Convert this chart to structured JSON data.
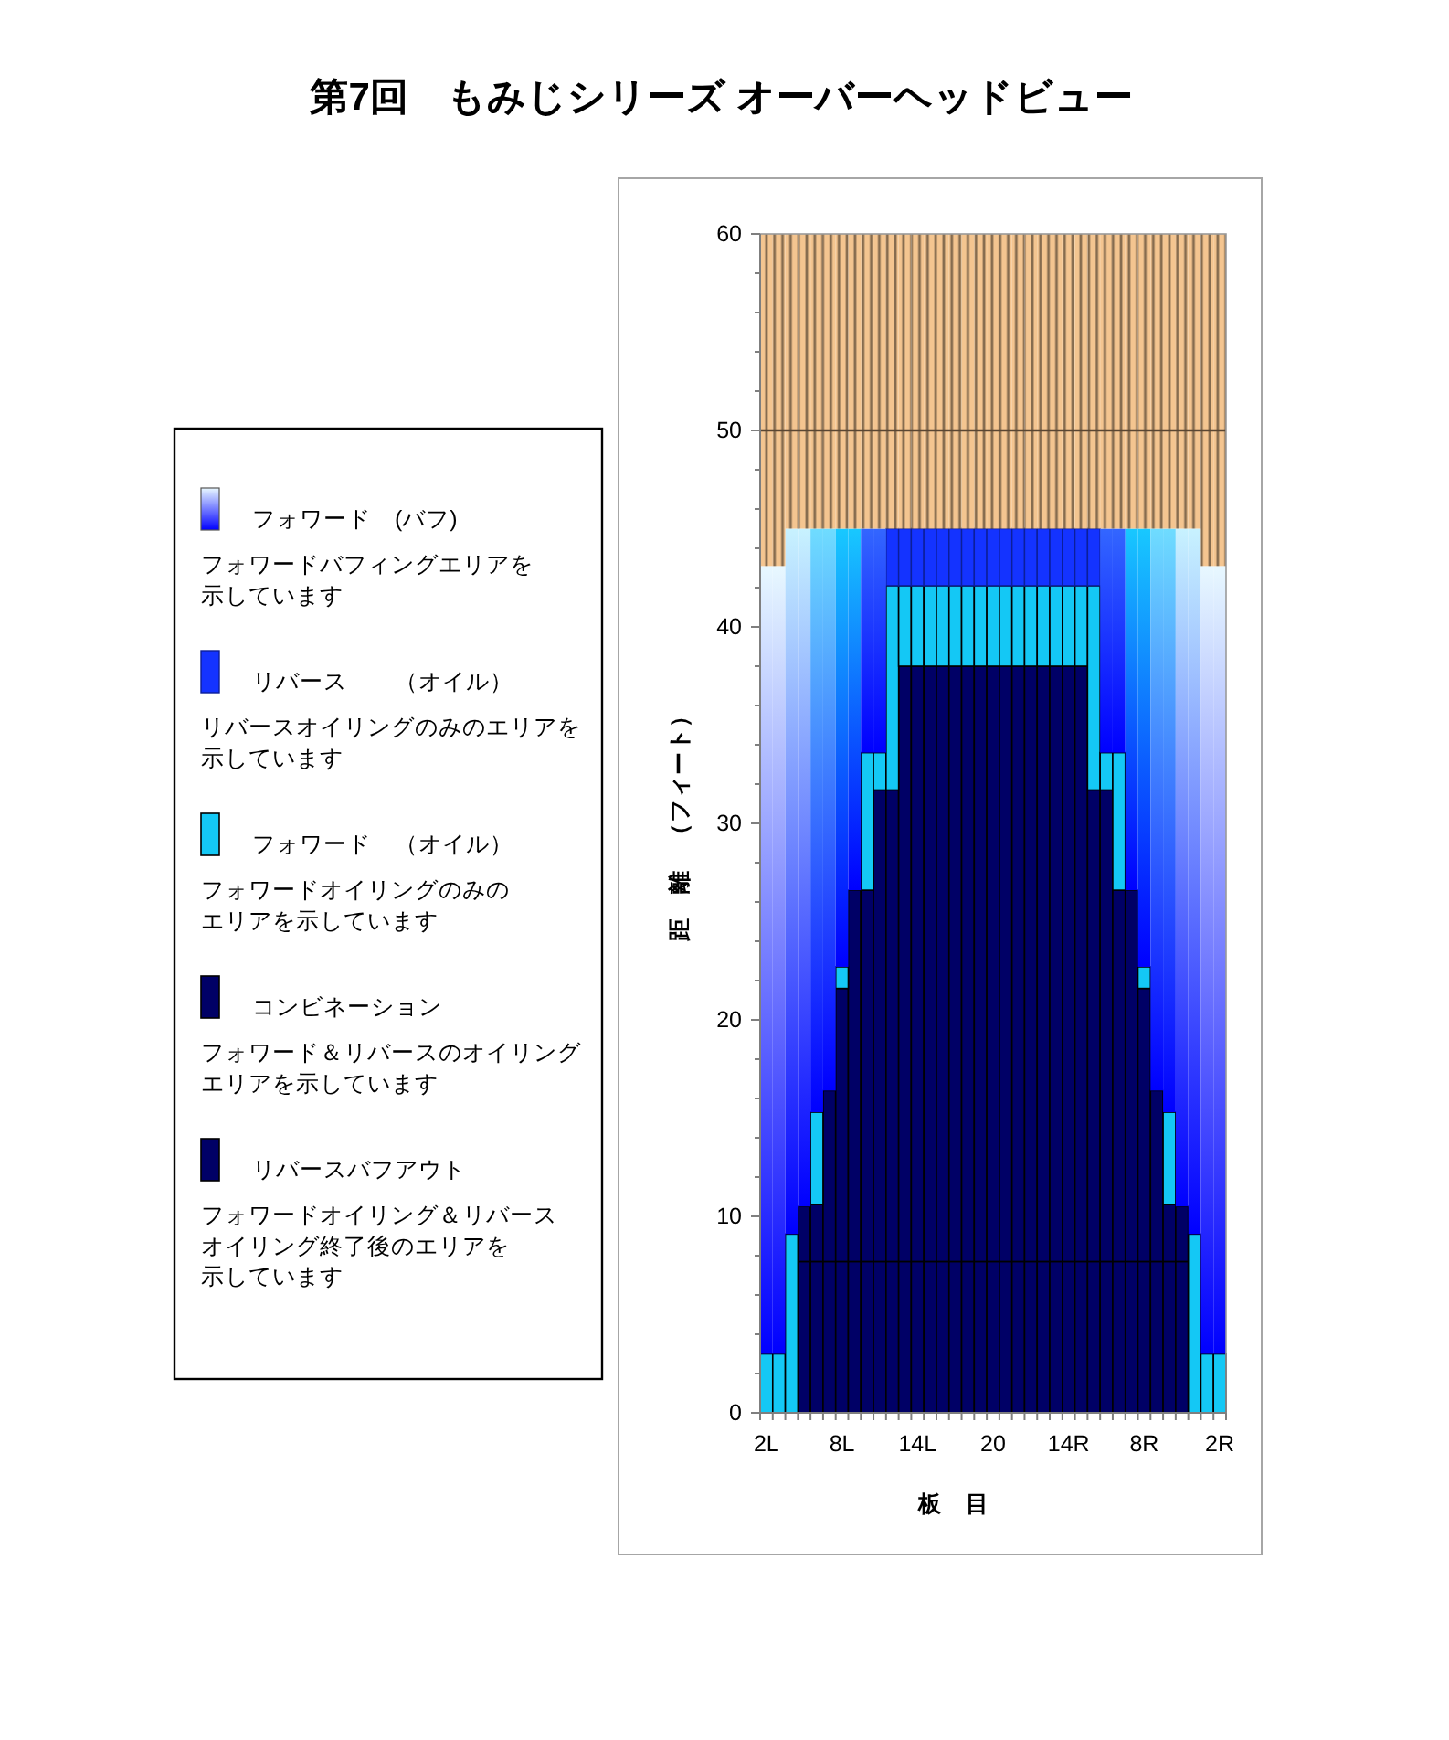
{
  "chart_data": {
    "type": "bar",
    "stacked": true,
    "title": "第7回　もみじシリーズ オーバーヘッドビュー",
    "xlabel": "板　目",
    "ylabel": "距　離　（フィート）",
    "categories": [
      "2L",
      null,
      null,
      null,
      null,
      null,
      "8L",
      null,
      null,
      null,
      null,
      null,
      "14L",
      null,
      null,
      null,
      null,
      null,
      "20",
      null,
      null,
      null,
      null,
      null,
      "14R",
      null,
      null,
      null,
      null,
      null,
      "8R",
      null,
      null,
      null,
      null,
      null,
      "2R"
    ],
    "ylim": [
      0,
      60
    ],
    "yticks": [
      0,
      {
        "value": 2,
        "label": null
      },
      {
        "value": 4,
        "label": null
      },
      {
        "value": 6,
        "label": null
      },
      {
        "value": 8,
        "label": null
      },
      10,
      {
        "value": 12,
        "label": null
      },
      {
        "value": 14,
        "label": null
      },
      {
        "value": 16,
        "label": null
      },
      {
        "value": 18,
        "label": null
      },
      20,
      {
        "value": 22,
        "label": null
      },
      {
        "value": 24,
        "label": null
      },
      {
        "value": 26,
        "label": null
      },
      {
        "value": 28,
        "label": null
      },
      30,
      {
        "value": 32,
        "label": null
      },
      {
        "value": 34,
        "label": null
      },
      {
        "value": 36,
        "label": null
      },
      {
        "value": 38,
        "label": null
      },
      40,
      {
        "value": 42,
        "label": null
      },
      {
        "value": 44,
        "label": null
      },
      {
        "value": 46,
        "label": null
      },
      {
        "value": 48,
        "label": null
      },
      50,
      {
        "value": 52,
        "label": null
      },
      {
        "value": 54,
        "label": null
      },
      {
        "value": 56,
        "label": null
      },
      {
        "value": 58,
        "label": null
      },
      60
    ],
    "series": [
      {
        "name": "リバースバフアウト",
        "color": "#000066",
        "values": [
          null,
          null,
          null,
          7.7,
          7.7,
          7.7,
          7.7,
          7.7,
          7.7,
          7.7,
          7.7,
          7.7,
          7.7,
          7.7,
          7.7,
          7.7,
          7.7,
          7.7,
          7.7,
          7.7,
          7.7,
          7.7,
          7.7,
          7.7,
          7.7,
          7.7,
          7.7,
          7.7,
          7.7,
          7.7,
          7.7,
          7.7,
          7.7,
          7.7,
          null,
          null,
          null
        ]
      },
      {
        "name": "コンビネーション",
        "color": "#000066",
        "values": [
          null,
          null,
          null,
          2.8,
          2.9,
          8.7,
          13.9,
          18.9,
          18.9,
          24.0,
          24.0,
          30.3,
          30.3,
          30.3,
          30.3,
          30.3,
          30.3,
          30.3,
          30.3,
          30.3,
          30.3,
          30.3,
          30.3,
          30.3,
          30.3,
          30.3,
          24.0,
          24.0,
          18.9,
          18.9,
          13.9,
          8.7,
          2.9,
          2.8,
          null,
          null,
          null
        ]
      },
      {
        "name": "フォワード　（オイル）",
        "color": "#14c8f5",
        "values": [
          3,
          3,
          9.1,
          null,
          4.7,
          null,
          1.1,
          null,
          7.0,
          1.9,
          10.4,
          4.1,
          4.1,
          4.1,
          4.1,
          4.1,
          4.1,
          4.1,
          4.1,
          4.1,
          4.1,
          4.1,
          4.1,
          4.1,
          4.1,
          4.1,
          10.4,
          1.9,
          7.0,
          null,
          1.1,
          null,
          4.7,
          null,
          9.1,
          3,
          3
        ]
      },
      {
        "name": "リバース　　（オイル）",
        "color": "#1433ff",
        "values": [
          null,
          null,
          null,
          null,
          null,
          null,
          null,
          null,
          null,
          null,
          2.9,
          2.9,
          2.9,
          2.9,
          2.9,
          2.9,
          2.9,
          2.9,
          2.9,
          2.9,
          2.9,
          2.9,
          2.9,
          2.9,
          2.9,
          2.9,
          2.9,
          null,
          null,
          null,
          null,
          null,
          null,
          null,
          null,
          null,
          null
        ]
      },
      {
        "name": "フォワード　(バフ)",
        "color": "#0000ff",
        "colors": [
          "#e8f8ff",
          "#e8f8ff",
          "#c8f2ff",
          "#c8f2ff",
          "#6fdcff",
          "#6fdcff",
          "#18c8ff",
          "#18c8ff",
          "#3366ff",
          "#3366ff",
          null,
          null,
          null,
          null,
          null,
          null,
          null,
          null,
          null,
          null,
          null,
          null,
          null,
          null,
          null,
          null,
          null,
          "#3366ff",
          "#3366ff",
          "#18c8ff",
          "#18c8ff",
          "#6fdcff",
          "#6fdcff",
          "#c8f2ff",
          "#c8f2ff",
          "#e8f8ff",
          "#e8f8ff"
        ],
        "values": [
          40.1,
          40.1,
          35.9,
          34.5,
          29.7,
          28.6,
          22.3,
          18.4,
          11.4,
          11.4,
          null,
          null,
          null,
          null,
          null,
          null,
          null,
          null,
          null,
          null,
          null,
          null,
          null,
          null,
          null,
          null,
          null,
          11.4,
          11.4,
          18.4,
          22.3,
          28.6,
          29.7,
          34.5,
          35.9,
          40.1,
          40.1
        ]
      },
      {
        "color": "#f4c590",
        "values": [
          16.9,
          16.9,
          15,
          15,
          15,
          15,
          15,
          15,
          15,
          15,
          15,
          15,
          15,
          15,
          15,
          15,
          15,
          15,
          15,
          15,
          15,
          15,
          15,
          15,
          15,
          15,
          15,
          15,
          15,
          15,
          15,
          15,
          15,
          15,
          15,
          16.9,
          16.9
        ]
      }
    ],
    "ref_lines": [
      {
        "axis": "y",
        "value": 50,
        "color": "#5a4632"
      }
    ],
    "legend": "left",
    "annotations": [
      "フォワードバフィングエリアを",
      "示しています",
      "リバースオイリングのみのエリアを",
      "示しています",
      "フォワードオイリングのみの",
      "エリアを示しています",
      "フォワード＆リバースのオイリング",
      "エリアを示しています",
      "フォワードオイリング＆リバース",
      "オイリング終了後のエリアを",
      "示しています"
    ]
  }
}
